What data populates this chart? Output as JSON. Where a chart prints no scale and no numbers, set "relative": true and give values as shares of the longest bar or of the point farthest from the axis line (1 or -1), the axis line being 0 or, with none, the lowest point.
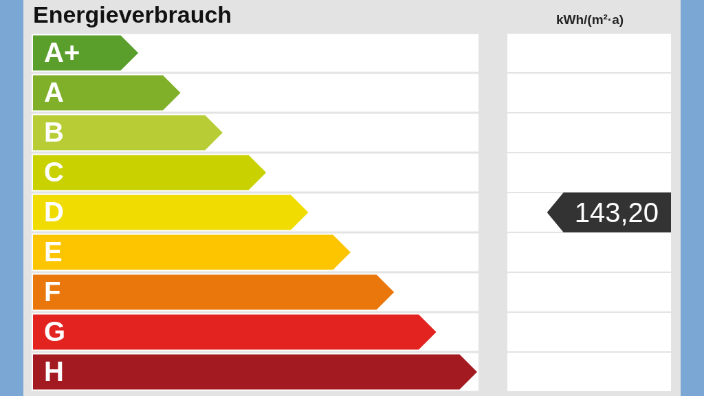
{
  "chart_data": {
    "type": "bar",
    "orientation": "horizontal",
    "relative": true,
    "title": "Energieverbrauch",
    "categories": [
      "A+",
      "A",
      "B",
      "C",
      "D",
      "E",
      "F",
      "G",
      "H"
    ],
    "values": [
      0.237,
      0.332,
      0.427,
      0.525,
      0.62,
      0.715,
      0.813,
      0.908,
      1
    ],
    "colors": [
      "#5a9e2c",
      "#80b02a",
      "#b8cd35",
      "#c9d200",
      "#f0dc00",
      "#fcc500",
      "#ea770c",
      "#e2231f",
      "#a31a20"
    ],
    "annotations": [
      "kWh/(m²·a)",
      "143,20"
    ],
    "legend": false
  }
}
